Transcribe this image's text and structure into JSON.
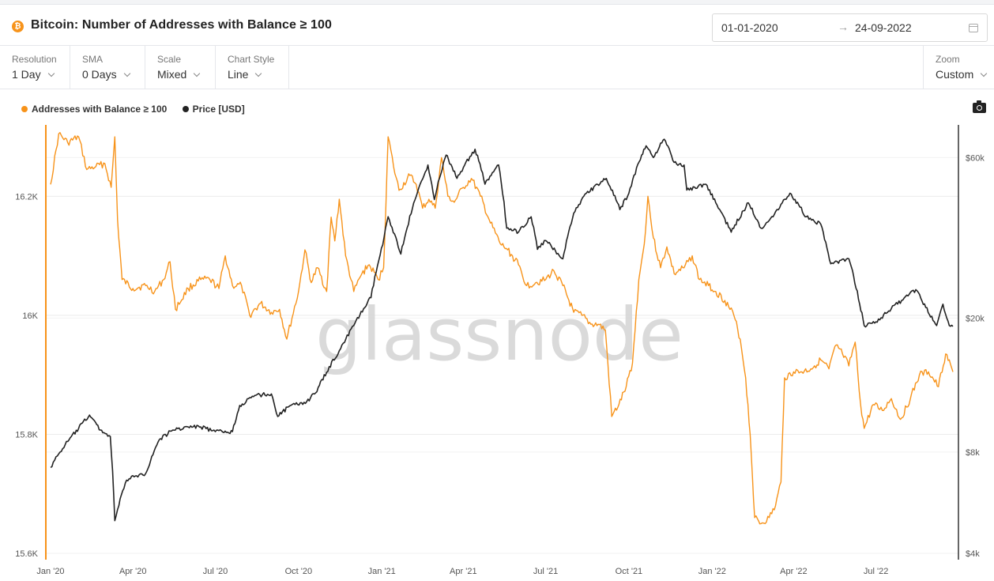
{
  "header": {
    "icon_label": "₿",
    "title": "Bitcoin: Number of Addresses with Balance ≥ 100",
    "date_start": "01-01-2020",
    "date_arrow": "→",
    "date_end": "24-09-2022"
  },
  "controls": {
    "resolution": {
      "label": "Resolution",
      "value": "1 Day"
    },
    "sma": {
      "label": "SMA",
      "value": "0 Days"
    },
    "scale": {
      "label": "Scale",
      "value": "Mixed"
    },
    "chart_style": {
      "label": "Chart Style",
      "value": "Line"
    },
    "zoom": {
      "label": "Zoom",
      "value": "Custom"
    }
  },
  "watermark": "glassnode",
  "colors": {
    "addresses": "#f7931a",
    "price": "#222222",
    "grid": "#ebebeb"
  },
  "chart_data": {
    "type": "line",
    "title": "Bitcoin: Number of Addresses with Balance ≥ 100",
    "x_tick_labels": [
      "Jan '20",
      "Apr '20",
      "Jul '20",
      "Oct '20",
      "Jan '21",
      "Apr '21",
      "Jul '21",
      "Oct '21",
      "Jan '22",
      "Apr '22",
      "Jul '22"
    ],
    "x_range": [
      "2020-01-01",
      "2022-09-24"
    ],
    "legend_placement": "top-left",
    "grid": true,
    "y_left": {
      "ticks": [
        "15.6K",
        "15.8K",
        "16K",
        "16.2K"
      ],
      "range": [
        15600,
        16320
      ],
      "scale": "linear"
    },
    "y_right": {
      "ticks": [
        "$4k",
        "$8k",
        "$20k",
        "$60k"
      ],
      "range": [
        4000,
        75000
      ],
      "scale": "log"
    },
    "series": [
      {
        "name": "Addresses with Balance ≥ 100",
        "axis": "left",
        "color": "#f7931a",
        "points": [
          [
            "2020-01-01",
            16220
          ],
          [
            "2020-01-10",
            16305
          ],
          [
            "2020-01-20",
            16290
          ],
          [
            "2020-02-01",
            16300
          ],
          [
            "2020-02-10",
            16245
          ],
          [
            "2020-02-20",
            16250
          ],
          [
            "2020-03-01",
            16255
          ],
          [
            "2020-03-08",
            16215
          ],
          [
            "2020-03-12",
            16300
          ],
          [
            "2020-03-15",
            16160
          ],
          [
            "2020-03-20",
            16060
          ],
          [
            "2020-04-01",
            16045
          ],
          [
            "2020-04-15",
            16050
          ],
          [
            "2020-04-25",
            16040
          ],
          [
            "2020-05-05",
            16060
          ],
          [
            "2020-05-12",
            16090
          ],
          [
            "2020-05-18",
            16010
          ],
          [
            "2020-06-01",
            16045
          ],
          [
            "2020-06-15",
            16060
          ],
          [
            "2020-06-25",
            16060
          ],
          [
            "2020-07-05",
            16045
          ],
          [
            "2020-07-12",
            16100
          ],
          [
            "2020-07-20",
            16050
          ],
          [
            "2020-07-30",
            16050
          ],
          [
            "2020-08-08",
            16000
          ],
          [
            "2020-08-20",
            16020
          ],
          [
            "2020-09-01",
            16005
          ],
          [
            "2020-09-10",
            16010
          ],
          [
            "2020-09-18",
            15960
          ],
          [
            "2020-10-01",
            16040
          ],
          [
            "2020-10-08",
            16110
          ],
          [
            "2020-10-15",
            16055
          ],
          [
            "2020-10-22",
            16080
          ],
          [
            "2020-11-01",
            16040
          ],
          [
            "2020-11-06",
            16165
          ],
          [
            "2020-11-10",
            16125
          ],
          [
            "2020-11-15",
            16195
          ],
          [
            "2020-11-22",
            16100
          ],
          [
            "2020-12-01",
            16040
          ],
          [
            "2020-12-10",
            16070
          ],
          [
            "2020-12-18",
            16085
          ],
          [
            "2020-12-28",
            16060
          ],
          [
            "2021-01-03",
            16080
          ],
          [
            "2021-01-08",
            16300
          ],
          [
            "2021-01-14",
            16250
          ],
          [
            "2021-01-20",
            16210
          ],
          [
            "2021-02-01",
            16235
          ],
          [
            "2021-02-08",
            16220
          ],
          [
            "2021-02-15",
            16180
          ],
          [
            "2021-02-22",
            16195
          ],
          [
            "2021-03-01",
            16180
          ],
          [
            "2021-03-08",
            16265
          ],
          [
            "2021-03-15",
            16200
          ],
          [
            "2021-03-22",
            16190
          ],
          [
            "2021-04-01",
            16215
          ],
          [
            "2021-04-10",
            16230
          ],
          [
            "2021-04-20",
            16200
          ],
          [
            "2021-05-01",
            16155
          ],
          [
            "2021-05-12",
            16120
          ],
          [
            "2021-05-20",
            16110
          ],
          [
            "2021-06-01",
            16085
          ],
          [
            "2021-06-10",
            16050
          ],
          [
            "2021-06-20",
            16055
          ],
          [
            "2021-07-01",
            16060
          ],
          [
            "2021-07-10",
            16075
          ],
          [
            "2021-07-20",
            16050
          ],
          [
            "2021-08-01",
            16005
          ],
          [
            "2021-08-10",
            16000
          ],
          [
            "2021-08-20",
            15985
          ],
          [
            "2021-08-28",
            15985
          ],
          [
            "2021-09-05",
            15975
          ],
          [
            "2021-09-12",
            15830
          ],
          [
            "2021-09-20",
            15850
          ],
          [
            "2021-09-28",
            15880
          ],
          [
            "2021-10-05",
            15920
          ],
          [
            "2021-10-12",
            16060
          ],
          [
            "2021-10-18",
            16120
          ],
          [
            "2021-10-22",
            16200
          ],
          [
            "2021-10-28",
            16130
          ],
          [
            "2021-11-05",
            16080
          ],
          [
            "2021-11-12",
            16115
          ],
          [
            "2021-11-20",
            16070
          ],
          [
            "2021-12-01",
            16080
          ],
          [
            "2021-12-10",
            16100
          ],
          [
            "2021-12-18",
            16060
          ],
          [
            "2021-12-28",
            16050
          ],
          [
            "2022-01-05",
            16040
          ],
          [
            "2022-01-15",
            16025
          ],
          [
            "2022-01-25",
            16000
          ],
          [
            "2022-02-01",
            15960
          ],
          [
            "2022-02-07",
            15895
          ],
          [
            "2022-02-12",
            15800
          ],
          [
            "2022-02-17",
            15660
          ],
          [
            "2022-02-24",
            15650
          ],
          [
            "2022-03-05",
            15660
          ],
          [
            "2022-03-12",
            15680
          ],
          [
            "2022-03-18",
            15720
          ],
          [
            "2022-03-22",
            15895
          ],
          [
            "2022-04-01",
            15905
          ],
          [
            "2022-04-10",
            15905
          ],
          [
            "2022-04-20",
            15910
          ],
          [
            "2022-05-01",
            15925
          ],
          [
            "2022-05-10",
            15910
          ],
          [
            "2022-05-18",
            15950
          ],
          [
            "2022-05-25",
            15935
          ],
          [
            "2022-06-01",
            15915
          ],
          [
            "2022-06-08",
            15955
          ],
          [
            "2022-06-14",
            15850
          ],
          [
            "2022-06-18",
            15810
          ],
          [
            "2022-06-28",
            15850
          ],
          [
            "2022-07-08",
            15840
          ],
          [
            "2022-07-18",
            15860
          ],
          [
            "2022-07-28",
            15825
          ],
          [
            "2022-08-08",
            15860
          ],
          [
            "2022-08-18",
            15900
          ],
          [
            "2022-08-28",
            15905
          ],
          [
            "2022-09-08",
            15880
          ],
          [
            "2022-09-16",
            15935
          ],
          [
            "2022-09-24",
            15905
          ]
        ]
      },
      {
        "name": "Price [USD]",
        "axis": "right",
        "color": "#222222",
        "points": [
          [
            "2020-01-01",
            7200
          ],
          [
            "2020-01-10",
            7900
          ],
          [
            "2020-01-20",
            8600
          ],
          [
            "2020-02-01",
            9400
          ],
          [
            "2020-02-13",
            10300
          ],
          [
            "2020-02-25",
            9300
          ],
          [
            "2020-03-07",
            8900
          ],
          [
            "2020-03-12",
            5000
          ],
          [
            "2020-03-15",
            5400
          ],
          [
            "2020-03-25",
            6600
          ],
          [
            "2020-04-05",
            6800
          ],
          [
            "2020-04-15",
            6900
          ],
          [
            "2020-04-30",
            8700
          ],
          [
            "2020-05-15",
            9300
          ],
          [
            "2020-06-01",
            9500
          ],
          [
            "2020-06-15",
            9500
          ],
          [
            "2020-07-01",
            9200
          ],
          [
            "2020-07-20",
            9200
          ],
          [
            "2020-07-28",
            11000
          ],
          [
            "2020-08-15",
            11800
          ],
          [
            "2020-09-01",
            11900
          ],
          [
            "2020-09-08",
            10200
          ],
          [
            "2020-09-20",
            10900
          ],
          [
            "2020-10-10",
            11300
          ],
          [
            "2020-10-20",
            12000
          ],
          [
            "2020-11-01",
            13800
          ],
          [
            "2020-11-15",
            16000
          ],
          [
            "2020-12-01",
            19000
          ],
          [
            "2020-12-20",
            23000
          ],
          [
            "2021-01-02",
            33000
          ],
          [
            "2021-01-08",
            40000
          ],
          [
            "2021-01-22",
            31000
          ],
          [
            "2021-02-08",
            46000
          ],
          [
            "2021-02-21",
            57000
          ],
          [
            "2021-02-28",
            45000
          ],
          [
            "2021-03-13",
            61000
          ],
          [
            "2021-03-25",
            52000
          ],
          [
            "2021-04-14",
            63500
          ],
          [
            "2021-04-25",
            50000
          ],
          [
            "2021-05-10",
            57000
          ],
          [
            "2021-05-19",
            37000
          ],
          [
            "2021-06-01",
            36000
          ],
          [
            "2021-06-15",
            40000
          ],
          [
            "2021-06-22",
            32000
          ],
          [
            "2021-07-01",
            34000
          ],
          [
            "2021-07-20",
            30000
          ],
          [
            "2021-08-01",
            41000
          ],
          [
            "2021-08-15",
            47000
          ],
          [
            "2021-09-06",
            52000
          ],
          [
            "2021-09-21",
            42000
          ],
          [
            "2021-10-01",
            47000
          ],
          [
            "2021-10-15",
            61000
          ],
          [
            "2021-10-20",
            65000
          ],
          [
            "2021-10-28",
            60000
          ],
          [
            "2021-11-09",
            68000
          ],
          [
            "2021-11-20",
            58000
          ],
          [
            "2021-12-01",
            57000
          ],
          [
            "2021-12-04",
            48000
          ],
          [
            "2021-12-25",
            50000
          ],
          [
            "2022-01-05",
            44000
          ],
          [
            "2022-01-22",
            36000
          ],
          [
            "2022-02-10",
            44000
          ],
          [
            "2022-02-24",
            37000
          ],
          [
            "2022-03-05",
            39000
          ],
          [
            "2022-03-28",
            47000
          ],
          [
            "2022-04-15",
            40000
          ],
          [
            "2022-05-01",
            38000
          ],
          [
            "2022-05-12",
            29000
          ],
          [
            "2022-06-01",
            30000
          ],
          [
            "2022-06-13",
            22000
          ],
          [
            "2022-06-18",
            19000
          ],
          [
            "2022-07-01",
            19500
          ],
          [
            "2022-07-15",
            21000
          ],
          [
            "2022-08-14",
            24300
          ],
          [
            "2022-08-25",
            21500
          ],
          [
            "2022-09-06",
            19000
          ],
          [
            "2022-09-13",
            22000
          ],
          [
            "2022-09-20",
            19000
          ],
          [
            "2022-09-24",
            18900
          ]
        ]
      }
    ]
  }
}
